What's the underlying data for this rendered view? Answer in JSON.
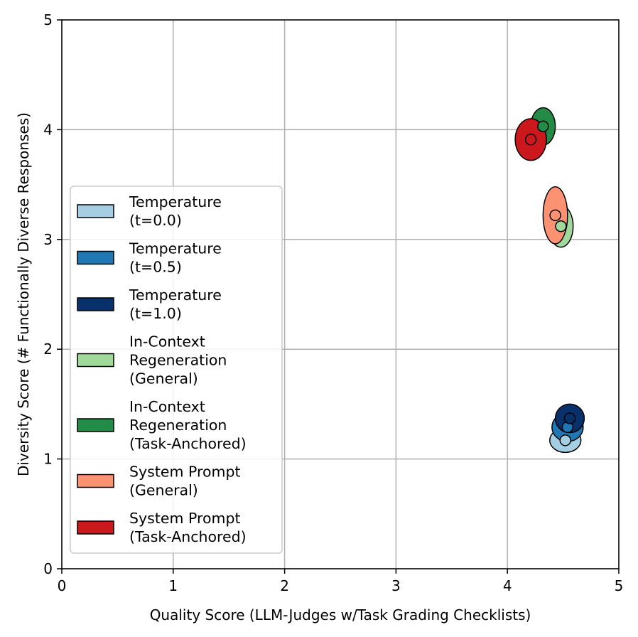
{
  "chart_data": {
    "type": "scatter",
    "title": "",
    "xlabel": "Quality Score (LLM-Judges w/Task Grading Checklists)",
    "ylabel": "Diversity Score (# Functionally Diverse Responses)",
    "xlim": [
      0,
      5
    ],
    "ylim": [
      0,
      5
    ],
    "xticks": [
      "0",
      "1",
      "2",
      "3",
      "4",
      "5"
    ],
    "yticks": [
      "0",
      "1",
      "2",
      "3",
      "4",
      "5"
    ],
    "grid": true,
    "legend_position": "center-left",
    "series": [
      {
        "name": "Temperature (t=0.0)",
        "label_lines": [
          "Temperature",
          "(t=0.0)"
        ],
        "color": "#a6cee3",
        "x": 4.52,
        "y": 1.17,
        "x_spread": 0.14,
        "y_spread": 0.11
      },
      {
        "name": "Temperature (t=0.5)",
        "label_lines": [
          "Temperature",
          "(t=0.5)"
        ],
        "color": "#1f78b4",
        "x": 4.54,
        "y": 1.29,
        "x_spread": 0.14,
        "y_spread": 0.13
      },
      {
        "name": "Temperature (t=1.0)",
        "label_lines": [
          "Temperature",
          "(t=1.0)"
        ],
        "color": "#08306b",
        "x": 4.56,
        "y": 1.37,
        "x_spread": 0.13,
        "y_spread": 0.13
      },
      {
        "name": "In-Context Regeneration (General)",
        "label_lines": [
          "In-Context",
          "Regeneration",
          "(General)"
        ],
        "color": "#a1d99b",
        "x": 4.48,
        "y": 3.12,
        "x_spread": 0.11,
        "y_spread": 0.19
      },
      {
        "name": "In-Context Regeneration (Task-Anchored)",
        "label_lines": [
          "In-Context",
          "Regeneration",
          "(Task-Anchored)"
        ],
        "color": "#238b45",
        "x": 4.32,
        "y": 4.03,
        "x_spread": 0.11,
        "y_spread": 0.17
      },
      {
        "name": "System Prompt (General)",
        "label_lines": [
          "System Prompt",
          "(General)"
        ],
        "color": "#fc9272",
        "x": 4.43,
        "y": 3.22,
        "x_spread": 0.11,
        "y_spread": 0.26
      },
      {
        "name": "System Prompt (Task-Anchored)",
        "label_lines": [
          "System Prompt",
          "(Task-Anchored)"
        ],
        "color": "#cb181d",
        "x": 4.21,
        "y": 3.91,
        "x_spread": 0.14,
        "y_spread": 0.19
      }
    ]
  }
}
